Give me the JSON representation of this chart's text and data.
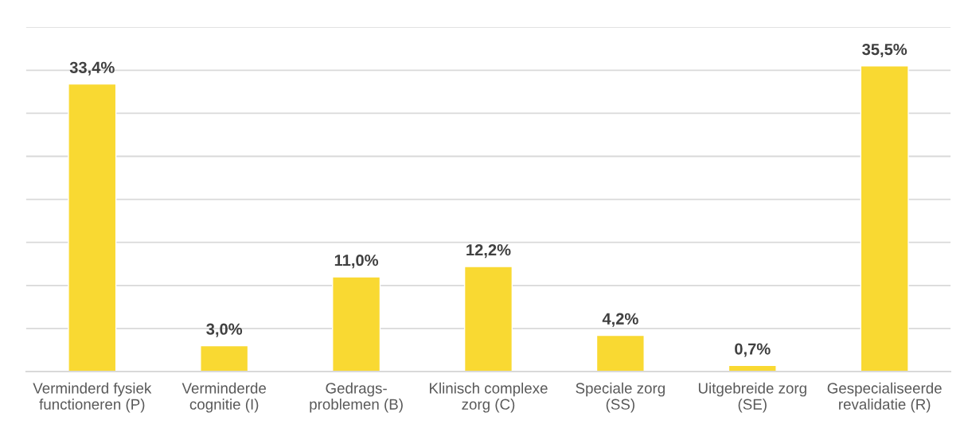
{
  "chart_data": {
    "type": "bar",
    "categories": [
      "Verminderd fysiek\nfunctioneren (P)",
      "Verminderde\ncognitie (I)",
      "Gedrags-\nproblemen (B)",
      "Klinisch complexe\nzorg (C)",
      "Speciale zorg\n(SS)",
      "Uitgebreide zorg\n(SE)",
      "Gespecialiseerde\nrevalidatie (R)"
    ],
    "values": [
      33.4,
      3.0,
      11.0,
      12.2,
      4.2,
      0.7,
      35.5
    ],
    "value_labels": [
      "33,4%",
      "3,0%",
      "11,0%",
      "12,2%",
      "4,2%",
      "0,7%",
      "35,5%"
    ],
    "color": "#f9d932",
    "ylim": [
      0,
      40
    ],
    "yticks": [
      {
        "value": 0,
        "label": null
      },
      {
        "value": 5,
        "label": null
      },
      {
        "value": 10,
        "label": null
      },
      {
        "value": 15,
        "label": null
      },
      {
        "value": 20,
        "label": null
      },
      {
        "value": 25,
        "label": null
      },
      {
        "value": 30,
        "label": null
      },
      {
        "value": 35,
        "label": null
      },
      {
        "value": 40,
        "label": null
      }
    ],
    "tick_labels": "x",
    "grid": "y"
  }
}
